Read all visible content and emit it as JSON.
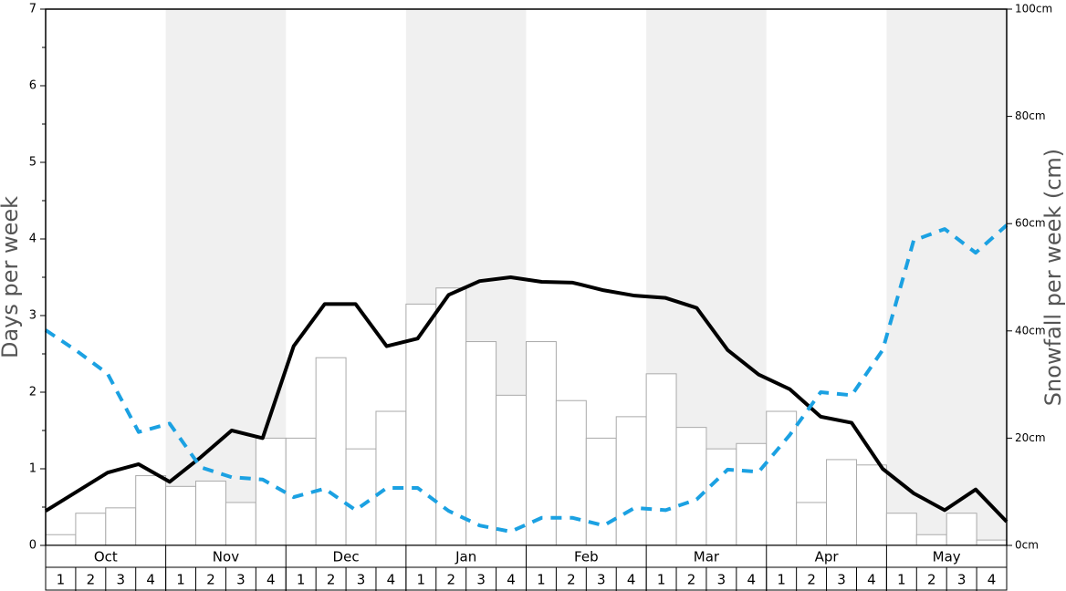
{
  "chart_data": {
    "type": "bar_line",
    "ylabel": "Days per week",
    "y2label": "Snowfall per week (cm)",
    "months": [
      "Oct",
      "Nov",
      "Dec",
      "Jan",
      "Feb",
      "Mar",
      "Apr",
      "May"
    ],
    "categories": [
      "1",
      "2",
      "3",
      "4",
      "1",
      "2",
      "3",
      "4",
      "1",
      "2",
      "3",
      "4",
      "1",
      "2",
      "3",
      "4",
      "1",
      "2",
      "3",
      "4",
      "1",
      "2",
      "3",
      "4",
      "1",
      "2",
      "3",
      "4",
      "1",
      "2",
      "3",
      "4"
    ],
    "ylim": [
      0,
      7
    ],
    "yticks": [
      0,
      1,
      2,
      3,
      4,
      5,
      6,
      7
    ],
    "y2lim": [
      0,
      100
    ],
    "y2ticks": [
      {
        "value": 0,
        "label": "0cm"
      },
      {
        "value": 20,
        "label": "20cm"
      },
      {
        "value": 40,
        "label": "40cm"
      },
      {
        "value": 60,
        "label": "60cm"
      },
      {
        "value": 80,
        "label": "80cm"
      },
      {
        "value": 100,
        "label": "100cm"
      }
    ],
    "series": [
      {
        "kind": "bar",
        "axis": "y2",
        "color": "#ffffff",
        "edge": "#aaaaaa",
        "values": [
          2,
          6,
          7,
          13,
          11,
          12,
          8,
          20,
          20,
          35,
          18,
          25,
          45,
          48,
          38,
          28,
          38,
          27,
          20,
          24,
          32,
          22,
          18,
          19,
          25,
          8,
          16,
          15,
          6,
          2,
          6,
          1
        ]
      },
      {
        "kind": "line",
        "color": "#000000",
        "style": "solid",
        "values": [
          0.45,
          0.7,
          0.95,
          1.06,
          0.83,
          1.15,
          1.5,
          1.4,
          2.6,
          3.15,
          3.15,
          2.6,
          2.7,
          3.27,
          3.45,
          3.5,
          3.44,
          3.43,
          3.33,
          3.26,
          3.23,
          3.1,
          2.55,
          2.23,
          2.04,
          1.68,
          1.6,
          1.0,
          0.68,
          0.46,
          0.73,
          0.31
        ]
      },
      {
        "kind": "line",
        "color": "#1ba1e2",
        "style": "dashed",
        "values": [
          2.81,
          2.54,
          2.24,
          1.48,
          1.59,
          1.02,
          0.89,
          0.86,
          0.63,
          0.74,
          0.46,
          0.75,
          0.75,
          0.45,
          0.26,
          0.18,
          0.36,
          0.36,
          0.26,
          0.49,
          0.46,
          0.6,
          0.99,
          0.96,
          1.44,
          2.0,
          1.96,
          2.55,
          3.98,
          4.13,
          3.82,
          4.18
        ]
      }
    ]
  }
}
